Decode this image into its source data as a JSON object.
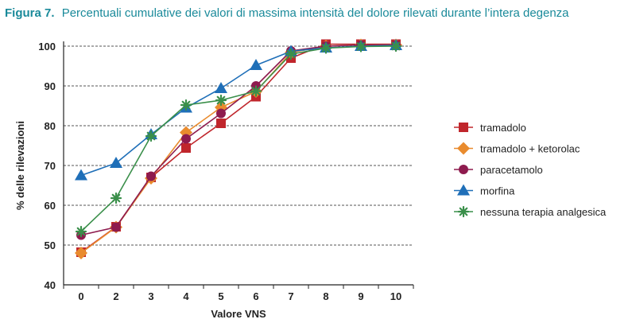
{
  "figure": {
    "label": "Figura 7.",
    "caption": "Percentuali cumulative dei valori di massima intensità del dolore rilevati durante l’intera degenza"
  },
  "chart_data": {
    "type": "line",
    "title": "Percentuali cumulative dei valori di massima intensità del dolore rilevati durante l’intera degenza",
    "xlabel": "Valore VNS",
    "ylabel": "% delle rilevazioni",
    "categories": [
      "0",
      "2",
      "3",
      "4",
      "5",
      "6",
      "7",
      "8",
      "9",
      "10"
    ],
    "ylim": [
      40,
      100
    ],
    "yticks": [
      40,
      50,
      60,
      70,
      80,
      90,
      100
    ],
    "grid": "horizontal-dashed",
    "legend_position": "right",
    "series": [
      {
        "name": "tramadolo",
        "color": "#c0262c",
        "marker": "square",
        "values": [
          48.2,
          54.6,
          67.0,
          74.4,
          80.6,
          87.3,
          97.0,
          100.5,
          100.5,
          100.5
        ]
      },
      {
        "name": "tramadolo + ketorolac",
        "color": "#e98b2e",
        "marker": "diamond",
        "values": [
          48.0,
          54.5,
          66.8,
          78.3,
          84.6,
          88.6,
          98.4,
          100.0,
          100.3,
          100.3
        ]
      },
      {
        "name": "paracetamolo",
        "color": "#8e1b4e",
        "marker": "circle",
        "values": [
          52.5,
          54.5,
          67.3,
          76.7,
          83.1,
          90.0,
          98.8,
          100.0,
          100.3,
          100.3
        ]
      },
      {
        "name": "morfina",
        "color": "#1f6fb8",
        "marker": "triangle",
        "values": [
          67.5,
          70.6,
          77.8,
          84.5,
          89.4,
          95.2,
          98.7,
          99.6,
          100.0,
          100.2
        ]
      },
      {
        "name": "nessuna terapia analgesica",
        "color": "#3a8f4a",
        "marker": "star",
        "values": [
          53.4,
          61.8,
          77.4,
          85.2,
          86.4,
          88.7,
          98.0,
          99.5,
          99.9,
          100.0
        ]
      }
    ]
  }
}
